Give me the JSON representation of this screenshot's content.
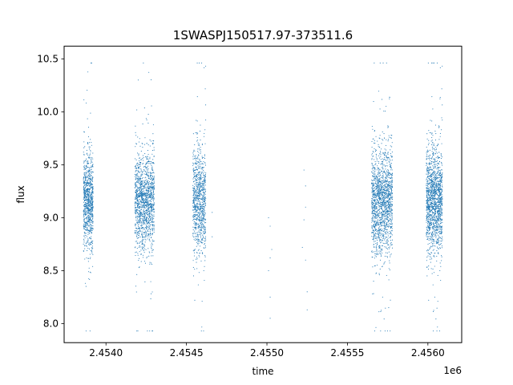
{
  "chart_data": {
    "type": "scatter",
    "title": "1SWASPJ150517.97-373511.6",
    "xlabel": "time",
    "ylabel": "flux",
    "x_offset_label": "1e6",
    "xlim": [
      2.45374,
      2.45621
    ],
    "ylim": [
      7.82,
      10.62
    ],
    "x_ticks": [
      2.454,
      2.4545,
      2.455,
      2.4555,
      2.456
    ],
    "x_tick_labels": [
      "2.4540",
      "2.4545",
      "2.4550",
      "2.4555",
      "2.4560"
    ],
    "y_ticks": [
      8.0,
      8.5,
      9.0,
      9.5,
      10.0,
      10.5
    ],
    "y_tick_labels": [
      "8.0",
      "8.5",
      "9.0",
      "9.5",
      "10.0",
      "10.5"
    ],
    "grid": false,
    "marker_color": "#1f77b4",
    "series": [
      {
        "clusters": [
          {
            "x_range": [
              2.45386,
              2.45392
            ],
            "y_center": 9.15,
            "y_spread": 0.22,
            "count": 900
          },
          {
            "x_range": [
              2.45418,
              2.4543
            ],
            "y_center": 9.15,
            "y_spread": 0.22,
            "count": 1400
          },
          {
            "x_range": [
              2.45454,
              2.45462
            ],
            "y_center": 9.15,
            "y_spread": 0.24,
            "count": 900
          },
          {
            "x_range": [
              2.45565,
              2.45578
            ],
            "y_center": 9.15,
            "y_spread": 0.24,
            "count": 1600
          },
          {
            "x_range": [
              2.45599,
              2.45609
            ],
            "y_center": 9.15,
            "y_spread": 0.24,
            "count": 1500
          }
        ],
        "sparse_points": [
          {
            "x": 2.45466,
            "y": 9.05
          },
          {
            "x": 2.45466,
            "y": 8.82
          },
          {
            "x": 2.45501,
            "y": 9.0
          },
          {
            "x": 2.45502,
            "y": 8.92
          },
          {
            "x": 2.45503,
            "y": 8.7
          },
          {
            "x": 2.45502,
            "y": 8.62
          },
          {
            "x": 2.45501,
            "y": 8.5
          },
          {
            "x": 2.45502,
            "y": 8.25
          },
          {
            "x": 2.45502,
            "y": 8.05
          },
          {
            "x": 2.45523,
            "y": 9.45
          },
          {
            "x": 2.45524,
            "y": 9.3
          },
          {
            "x": 2.45524,
            "y": 9.1
          },
          {
            "x": 2.45523,
            "y": 8.98
          },
          {
            "x": 2.45522,
            "y": 8.72
          },
          {
            "x": 2.45524,
            "y": 8.6
          },
          {
            "x": 2.45525,
            "y": 8.3
          },
          {
            "x": 2.45525,
            "y": 8.13
          }
        ]
      }
    ]
  }
}
